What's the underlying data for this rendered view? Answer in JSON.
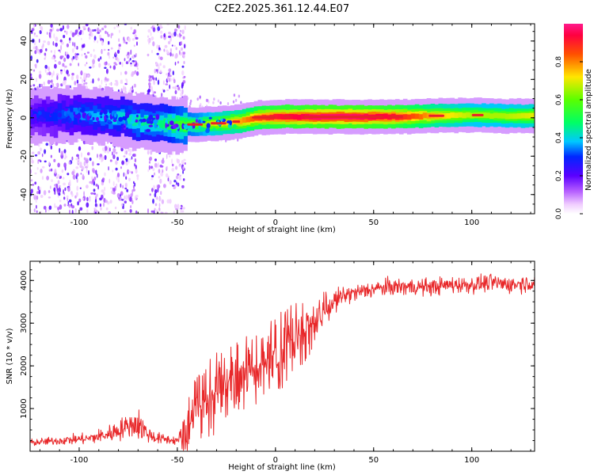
{
  "title": "C2E2.2025.361.12.44.E07",
  "colors": {
    "snr_line": "#e8282a",
    "background": "#ffffff",
    "axis": "#000000"
  },
  "chart_data": [
    {
      "type": "heatmap",
      "name": "spectrogram",
      "xlabel": "Height of straight line (km)",
      "ylabel": "Frequency (Hz)",
      "xlim": [
        -125,
        132
      ],
      "ylim": [
        -50,
        49
      ],
      "xticks": [
        -100,
        -50,
        0,
        50,
        100
      ],
      "xtick_labels": [
        "-100",
        "-50",
        "0",
        "50",
        "100"
      ],
      "yticks": [
        -40,
        -20,
        0,
        20,
        40
      ],
      "ytick_labels": [
        "-40",
        "-20",
        "0",
        "20",
        "40"
      ],
      "colorbar": {
        "label": "Normalized spectral amplitude",
        "range": [
          0,
          1
        ],
        "ticks": [
          0.0,
          0.2,
          0.4,
          0.6,
          0.8
        ],
        "tick_labels": [
          "0.0",
          "0.2",
          "0.4",
          "0.6",
          "0.8"
        ]
      },
      "scatter_regions_x": [
        [
          -125,
          -70
        ],
        [
          -65,
          -46
        ]
      ],
      "ridge": {
        "x": [
          -125,
          -100,
          -80,
          -70,
          -60,
          -50,
          -40,
          -30,
          -20,
          -10,
          0,
          10,
          20,
          40,
          60,
          80,
          100,
          115,
          132
        ],
        "freq": [
          1.0,
          1.5,
          0.0,
          -2.0,
          -3.0,
          -3.5,
          -3.5,
          -3.0,
          -2.0,
          0.0,
          0.5,
          0.5,
          0.5,
          0.5,
          0.5,
          1.0,
          1.5,
          1.0,
          1.0
        ],
        "amplitude": [
          0.25,
          0.35,
          0.4,
          0.45,
          0.45,
          0.55,
          0.6,
          0.7,
          0.75,
          0.85,
          0.9,
          0.92,
          0.95,
          0.95,
          0.9,
          0.75,
          0.65,
          0.65,
          0.7
        ]
      }
    },
    {
      "type": "line",
      "name": "snr",
      "xlabel": "Height of straight line (km)",
      "ylabel": "SNR (10 * v/v)",
      "xlim": [
        -125,
        132
      ],
      "ylim": [
        0,
        4450
      ],
      "xticks": [
        -100,
        -50,
        0,
        50,
        100
      ],
      "xtick_labels": [
        "-100",
        "-50",
        "0",
        "50",
        "100"
      ],
      "yticks": [
        1000,
        2000,
        3000,
        4000
      ],
      "ytick_labels": [
        "1000",
        "2000",
        "3000",
        "4000"
      ],
      "series": [
        {
          "name": "SNR",
          "x": [
            -125,
            -110,
            -95,
            -85,
            -80,
            -75,
            -70,
            -65,
            -60,
            -50,
            -47,
            -45,
            -42,
            -40,
            -35,
            -30,
            -25,
            -20,
            -15,
            -10,
            -5,
            0,
            5,
            10,
            15,
            20,
            25,
            30,
            35,
            40,
            50,
            60,
            70,
            80,
            90,
            100,
            110,
            120,
            132
          ],
          "mean": [
            200,
            250,
            300,
            400,
            500,
            600,
            650,
            400,
            300,
            250,
            350,
            500,
            800,
            1000,
            1200,
            1400,
            1600,
            1700,
            1800,
            1900,
            2100,
            2300,
            2500,
            2700,
            2800,
            3000,
            3300,
            3500,
            3650,
            3700,
            3800,
            3850,
            3850,
            3850,
            3900,
            3900,
            3950,
            3900,
            3950
          ],
          "spread": [
            120,
            150,
            200,
            300,
            400,
            350,
            600,
            300,
            200,
            150,
            400,
            700,
            900,
            900,
            1000,
            1100,
            1100,
            1000,
            1000,
            900,
            900,
            1000,
            1100,
            900,
            800,
            600,
            500,
            400,
            350,
            300,
            300,
            300,
            300,
            300,
            300,
            300,
            300,
            300,
            300
          ]
        }
      ]
    }
  ]
}
